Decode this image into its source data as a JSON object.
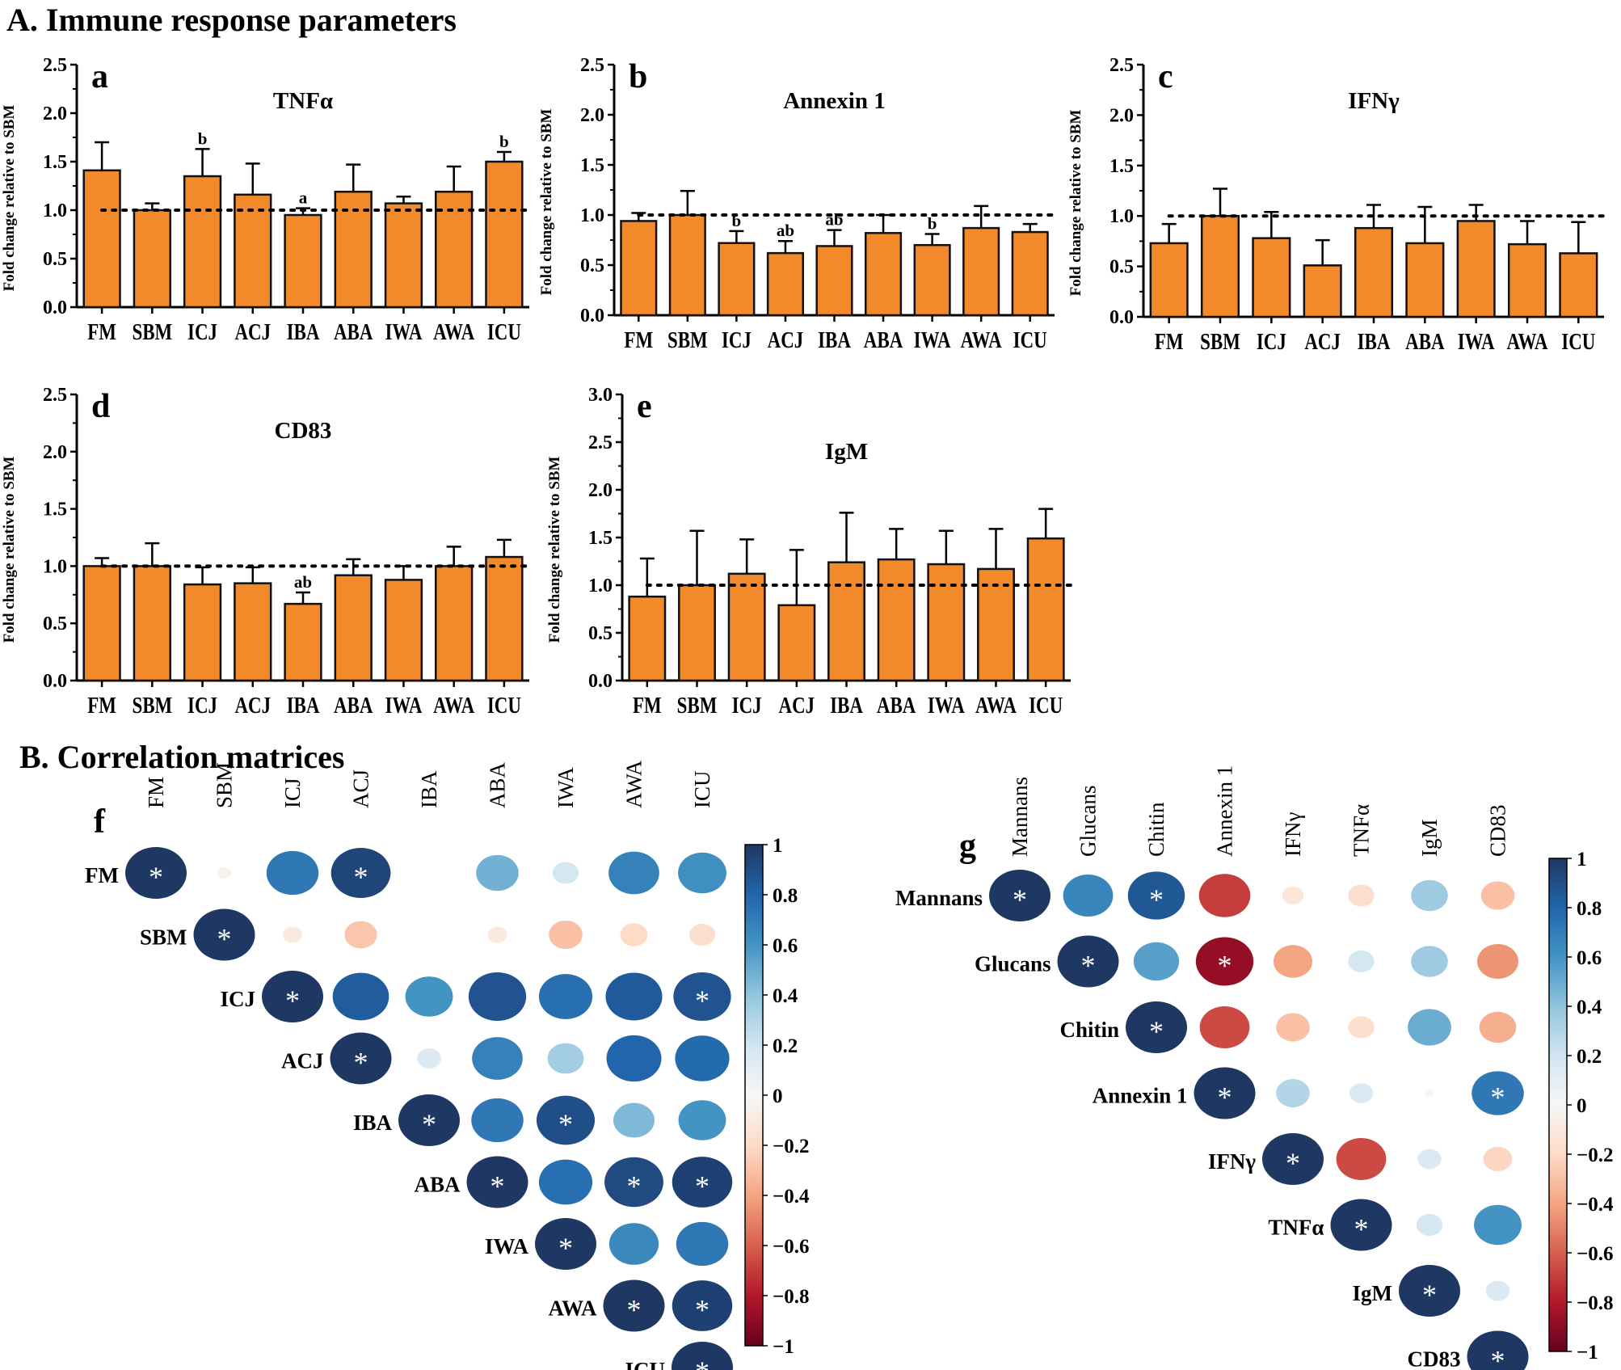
{
  "sections": {
    "A": "A. Immune response parameters",
    "B": "B. Correlation matrices"
  },
  "colors": {
    "bar": "#f28a2b",
    "bar_outline": "#111111",
    "positive": "#1f3763",
    "negative": "#67001f",
    "star": "#ffffff"
  },
  "chart_data": [
    {
      "panel": "a",
      "type": "bar",
      "title": "TNFα",
      "ylabel": "Fold change relative to SBM",
      "ylim": [
        0,
        2.5
      ],
      "yticks": [
        "0.0",
        "0.5",
        "1.0",
        "1.5",
        "2.0",
        "2.5"
      ],
      "reference_line": 1.0,
      "categories": [
        "FM",
        "SBM",
        "ICJ",
        "ACJ",
        "IBA",
        "ABA",
        "IWA",
        "AWA",
        "ICU"
      ],
      "values": [
        1.41,
        1.0,
        1.35,
        1.16,
        0.95,
        1.19,
        1.07,
        1.19,
        1.5
      ],
      "errors": [
        0.29,
        0.07,
        0.28,
        0.32,
        0.07,
        0.28,
        0.07,
        0.26,
        0.1
      ],
      "labels": [
        "",
        "",
        "b",
        "",
        "a",
        "",
        "",
        "",
        "b"
      ]
    },
    {
      "panel": "b",
      "type": "bar",
      "title": "Annexin 1",
      "ylabel": "Fold change relative to SBM",
      "ylim": [
        0,
        2.5
      ],
      "yticks": [
        "0.0",
        "0.5",
        "1.0",
        "1.5",
        "2.0",
        "2.5"
      ],
      "reference_line": 1.0,
      "categories": [
        "FM",
        "SBM",
        "ICJ",
        "ACJ",
        "IBA",
        "ABA",
        "IWA",
        "AWA",
        "ICU"
      ],
      "values": [
        0.94,
        1.0,
        0.72,
        0.62,
        0.69,
        0.82,
        0.7,
        0.87,
        0.83
      ],
      "errors": [
        0.08,
        0.24,
        0.12,
        0.12,
        0.16,
        0.18,
        0.11,
        0.22,
        0.08
      ],
      "labels": [
        "",
        "",
        "b",
        "ab",
        "ab",
        "",
        "b",
        "",
        ""
      ]
    },
    {
      "panel": "c",
      "type": "bar",
      "title": "IFNγ",
      "ylabel": "Fold change relative to SBM",
      "ylim": [
        0,
        2.5
      ],
      "yticks": [
        "0.0",
        "0.5",
        "1.0",
        "1.5",
        "2.0",
        "2.5"
      ],
      "reference_line": 1.0,
      "categories": [
        "FM",
        "SBM",
        "ICJ",
        "ACJ",
        "IBA",
        "ABA",
        "IWA",
        "AWA",
        "ICU"
      ],
      "values": [
        0.73,
        1.0,
        0.78,
        0.51,
        0.88,
        0.73,
        0.95,
        0.72,
        0.63
      ],
      "errors": [
        0.19,
        0.27,
        0.26,
        0.25,
        0.23,
        0.36,
        0.16,
        0.23,
        0.31
      ],
      "labels": [
        "",
        "",
        "",
        "",
        "",
        "",
        "",
        "",
        ""
      ]
    },
    {
      "panel": "d",
      "type": "bar",
      "title": "CD83",
      "ylabel": "Fold change relative to SBM",
      "ylim": [
        0,
        2.5
      ],
      "yticks": [
        "0.0",
        "0.5",
        "1.0",
        "1.5",
        "2.0",
        "2.5"
      ],
      "reference_line": 1.0,
      "categories": [
        "FM",
        "SBM",
        "ICJ",
        "ACJ",
        "IBA",
        "ABA",
        "IWA",
        "AWA",
        "ICU"
      ],
      "values": [
        1.0,
        1.0,
        0.84,
        0.85,
        0.67,
        0.92,
        0.88,
        1.0,
        1.08
      ],
      "errors": [
        0.07,
        0.2,
        0.15,
        0.14,
        0.1,
        0.14,
        0.12,
        0.17,
        0.15
      ],
      "labels": [
        "",
        "",
        "",
        "",
        "ab",
        "",
        "",
        "",
        ""
      ]
    },
    {
      "panel": "e",
      "type": "bar",
      "title": "IgM",
      "ylabel": "Fold change relative to SBM",
      "ylim": [
        0,
        3.0
      ],
      "yticks": [
        "0.0",
        "0.5",
        "1.0",
        "1.5",
        "2.0",
        "2.5",
        "3.0"
      ],
      "reference_line": 1.0,
      "categories": [
        "FM",
        "SBM",
        "ICJ",
        "ACJ",
        "IBA",
        "ABA",
        "IWA",
        "AWA",
        "ICU"
      ],
      "values": [
        0.88,
        1.0,
        1.12,
        0.79,
        1.24,
        1.27,
        1.22,
        1.17,
        1.49
      ],
      "errors": [
        0.4,
        0.57,
        0.36,
        0.58,
        0.52,
        0.32,
        0.35,
        0.42,
        0.31
      ],
      "labels": [
        "",
        "",
        "",
        "",
        "",
        "",
        "",
        "",
        ""
      ]
    },
    {
      "panel": "f",
      "type": "heatmap",
      "shape": "upper-triangle",
      "variables": [
        "FM",
        "SBM",
        "ICJ",
        "ACJ",
        "IBA",
        "ABA",
        "IWA",
        "AWA",
        "ICU"
      ],
      "matrix": [
        [
          1.0,
          -0.05,
          0.72,
          0.94,
          0.0,
          0.48,
          0.18,
          0.68,
          0.62
        ],
        [
          null,
          1.0,
          -0.1,
          -0.28,
          0.0,
          -0.1,
          -0.3,
          -0.2,
          -0.18
        ],
        [
          null,
          null,
          1.0,
          0.84,
          0.6,
          0.88,
          0.76,
          0.85,
          0.88
        ],
        [
          null,
          null,
          null,
          1.0,
          0.15,
          0.68,
          0.35,
          0.8,
          0.78
        ],
        [
          null,
          null,
          null,
          null,
          1.0,
          0.72,
          0.9,
          0.45,
          0.6
        ],
        [
          null,
          null,
          null,
          null,
          null,
          1.0,
          0.76,
          0.92,
          0.96
        ],
        [
          null,
          null,
          null,
          null,
          null,
          null,
          1.0,
          0.65,
          0.72
        ],
        [
          null,
          null,
          null,
          null,
          null,
          null,
          null,
          1.0,
          0.96
        ],
        [
          null,
          null,
          null,
          null,
          null,
          null,
          null,
          null,
          1.0
        ]
      ],
      "significant": [
        [
          true,
          false,
          false,
          true,
          false,
          false,
          false,
          false,
          false
        ],
        [
          false,
          true,
          false,
          false,
          false,
          false,
          false,
          false,
          false
        ],
        [
          false,
          false,
          true,
          false,
          false,
          false,
          false,
          false,
          true
        ],
        [
          false,
          false,
          false,
          true,
          false,
          false,
          false,
          false,
          false
        ],
        [
          false,
          false,
          false,
          false,
          true,
          false,
          true,
          false,
          false
        ],
        [
          false,
          false,
          false,
          false,
          false,
          true,
          false,
          true,
          true
        ],
        [
          false,
          false,
          false,
          false,
          false,
          false,
          true,
          false,
          false
        ],
        [
          false,
          false,
          false,
          false,
          false,
          false,
          false,
          true,
          true
        ],
        [
          false,
          false,
          false,
          false,
          false,
          false,
          false,
          false,
          true
        ]
      ],
      "star": "*",
      "colorbar_ticks": [
        "1",
        "0.8",
        "0.6",
        "0.4",
        "0.2",
        "0",
        "−0.2",
        "−0.4",
        "−0.6",
        "−0.8",
        "−1"
      ],
      "colorbar_range": [
        -1,
        1
      ]
    },
    {
      "panel": "g",
      "type": "heatmap",
      "shape": "upper-triangle",
      "variables": [
        "Mannans",
        "Glucans",
        "Chitin",
        "Annexin 1",
        "IFNγ",
        "TNFα",
        "IgM",
        "CD83"
      ],
      "matrix": [
        [
          1.0,
          0.66,
          0.86,
          -0.7,
          -0.12,
          -0.18,
          0.36,
          -0.3
        ],
        [
          null,
          1.0,
          0.55,
          -0.88,
          -0.4,
          0.18,
          0.36,
          -0.45
        ],
        [
          null,
          null,
          1.0,
          -0.66,
          -0.3,
          -0.18,
          0.5,
          -0.36
        ],
        [
          null,
          null,
          null,
          1.0,
          0.3,
          0.15,
          0.02,
          0.72
        ],
        [
          null,
          null,
          null,
          null,
          1.0,
          -0.66,
          0.15,
          -0.22
        ],
        [
          null,
          null,
          null,
          null,
          null,
          1.0,
          0.18,
          0.6
        ],
        [
          null,
          null,
          null,
          null,
          null,
          null,
          1.0,
          0.15
        ],
        [
          null,
          null,
          null,
          null,
          null,
          null,
          null,
          1.0
        ]
      ],
      "significant": [
        [
          true,
          false,
          true,
          false,
          false,
          false,
          false,
          false
        ],
        [
          false,
          true,
          false,
          true,
          false,
          false,
          false,
          false
        ],
        [
          false,
          false,
          true,
          false,
          false,
          false,
          false,
          false
        ],
        [
          false,
          false,
          false,
          true,
          false,
          false,
          false,
          true
        ],
        [
          false,
          false,
          false,
          false,
          true,
          false,
          false,
          false
        ],
        [
          false,
          false,
          false,
          false,
          false,
          true,
          false,
          false
        ],
        [
          false,
          false,
          false,
          false,
          false,
          false,
          true,
          false
        ],
        [
          false,
          false,
          false,
          false,
          false,
          false,
          false,
          true
        ]
      ],
      "star": "*",
      "colorbar_ticks": [
        "1",
        "0.8",
        "0.6",
        "0.4",
        "0.2",
        "0",
        "−0.2",
        "−0.4",
        "−0.6",
        "−0.8",
        "−1"
      ],
      "colorbar_range": [
        -1,
        1
      ]
    }
  ]
}
